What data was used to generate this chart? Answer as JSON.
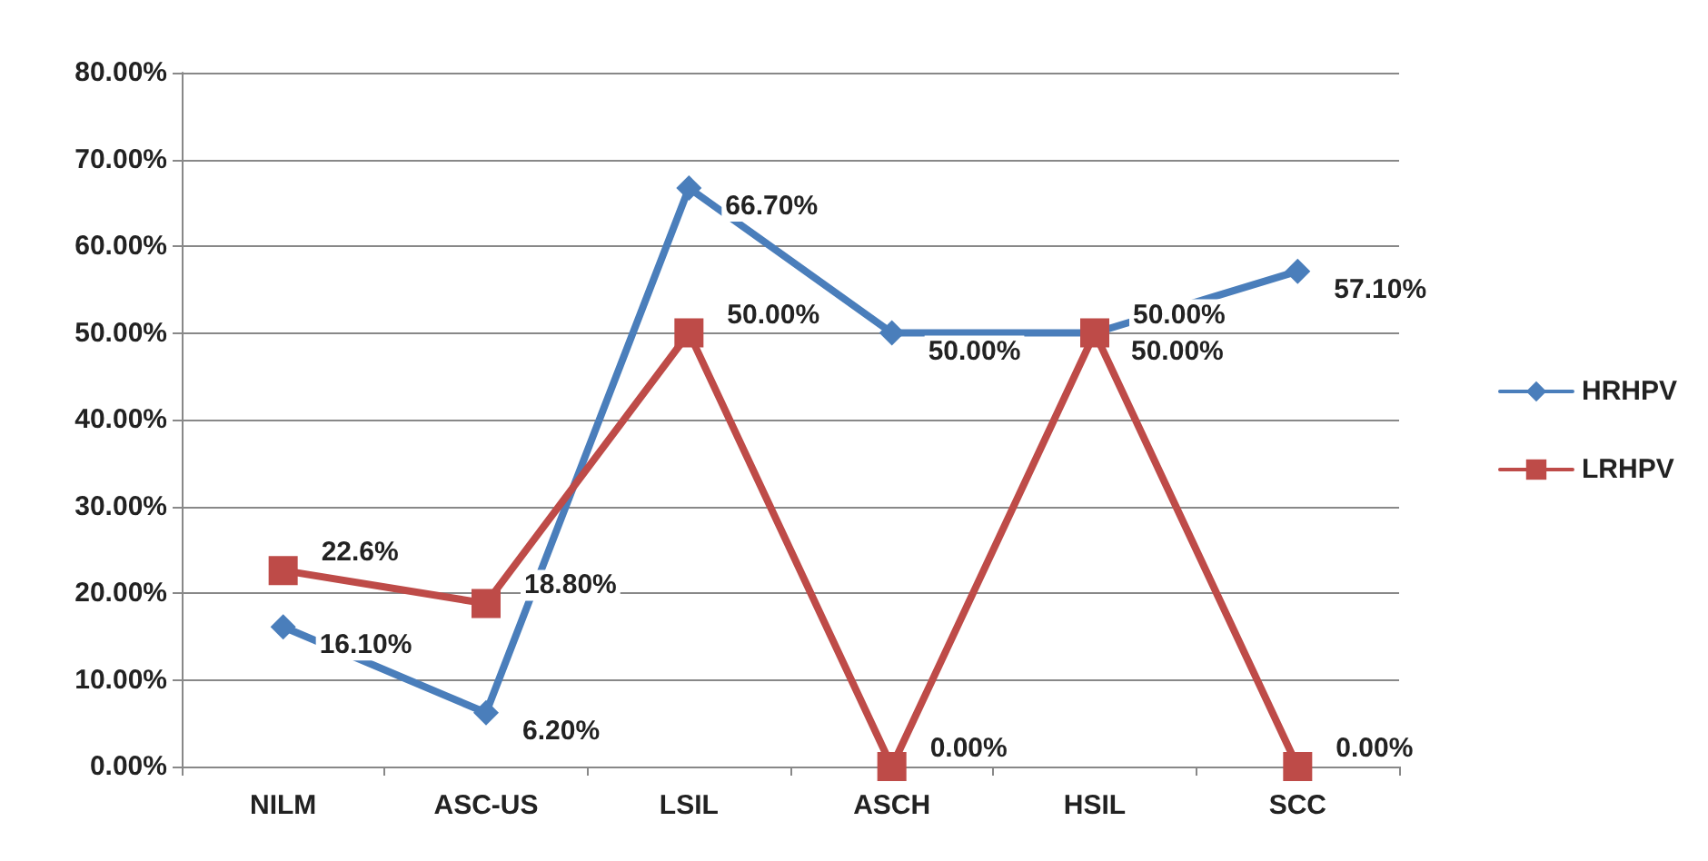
{
  "chart_data": {
    "type": "line",
    "categories": [
      "NILM",
      "ASC-US",
      "LSIL",
      "ASCH",
      "HSIL",
      "SCC"
    ],
    "series": [
      {
        "name": "HRHPV",
        "color": "#4a7ebb",
        "marker": "diamond",
        "values": [
          16.1,
          6.2,
          66.7,
          50,
          50,
          57.1
        ],
        "value_labels": [
          "16.10%",
          "6.20%",
          "66.70%",
          "50.00%",
          "50.00%",
          "57.10%"
        ]
      },
      {
        "name": "LRHPV",
        "color": "#be4b48",
        "marker": "square",
        "values": [
          22.6,
          18.8,
          50,
          0,
          50,
          0
        ],
        "value_labels": [
          "22.6%",
          "18.80%",
          "50.00%",
          "0.00%",
          "50.00%",
          "0.00%"
        ]
      }
    ],
    "ylim": [
      0,
      80
    ],
    "yticks": [
      {
        "value": 0,
        "label": "0.00%"
      },
      {
        "value": 10,
        "label": "10.00%"
      },
      {
        "value": 20,
        "label": "20.00%"
      },
      {
        "value": 30,
        "label": "30.00%"
      },
      {
        "value": 40,
        "label": "40.00%"
      },
      {
        "value": 50,
        "label": "50.00%"
      },
      {
        "value": 60,
        "label": "60.00%"
      },
      {
        "value": 70,
        "label": "70.00%"
      },
      {
        "value": 80,
        "label": "80.00%"
      }
    ],
    "grid": "y",
    "legend": "right",
    "line_style": "solid"
  }
}
